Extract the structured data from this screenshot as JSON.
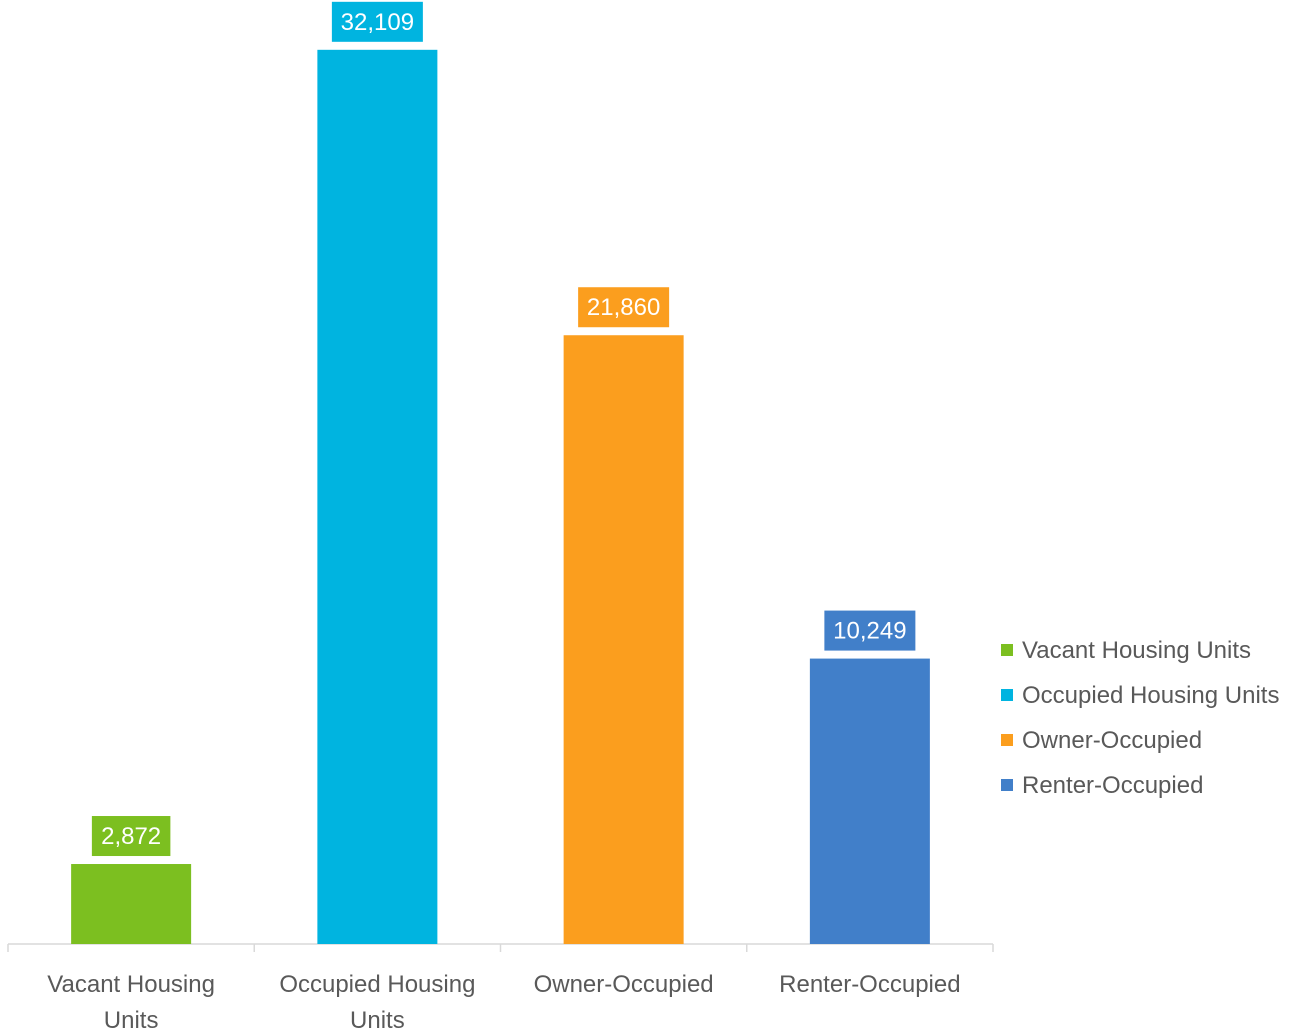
{
  "chart_data": {
    "type": "bar",
    "title": "",
    "xlabel": "",
    "ylabel": "",
    "categories": [
      "Vacant Housing Units",
      "Occupied Housing Units",
      "Owner-Occupied",
      "Renter-Occupied"
    ],
    "tick_labels": [
      [
        "Vacant Housing",
        "Units"
      ],
      [
        "Occupied Housing",
        "Units"
      ],
      [
        "Owner-Occupied"
      ],
      [
        "Renter-Occupied"
      ]
    ],
    "values": [
      2872,
      32109,
      21860,
      10249
    ],
    "data_labels": [
      "2,872",
      "32,109",
      "21,860",
      "10,249"
    ],
    "colors": [
      "#7cbf20",
      "#00b4e0",
      "#fb9e1e",
      "#417fc9"
    ],
    "ylim": [
      0,
      33000
    ],
    "grid": false,
    "legend": {
      "position": "right",
      "entries": [
        "Vacant Housing Units",
        "Occupied Housing Units",
        "Owner-Occupied",
        "Renter-Occupied"
      ]
    }
  }
}
